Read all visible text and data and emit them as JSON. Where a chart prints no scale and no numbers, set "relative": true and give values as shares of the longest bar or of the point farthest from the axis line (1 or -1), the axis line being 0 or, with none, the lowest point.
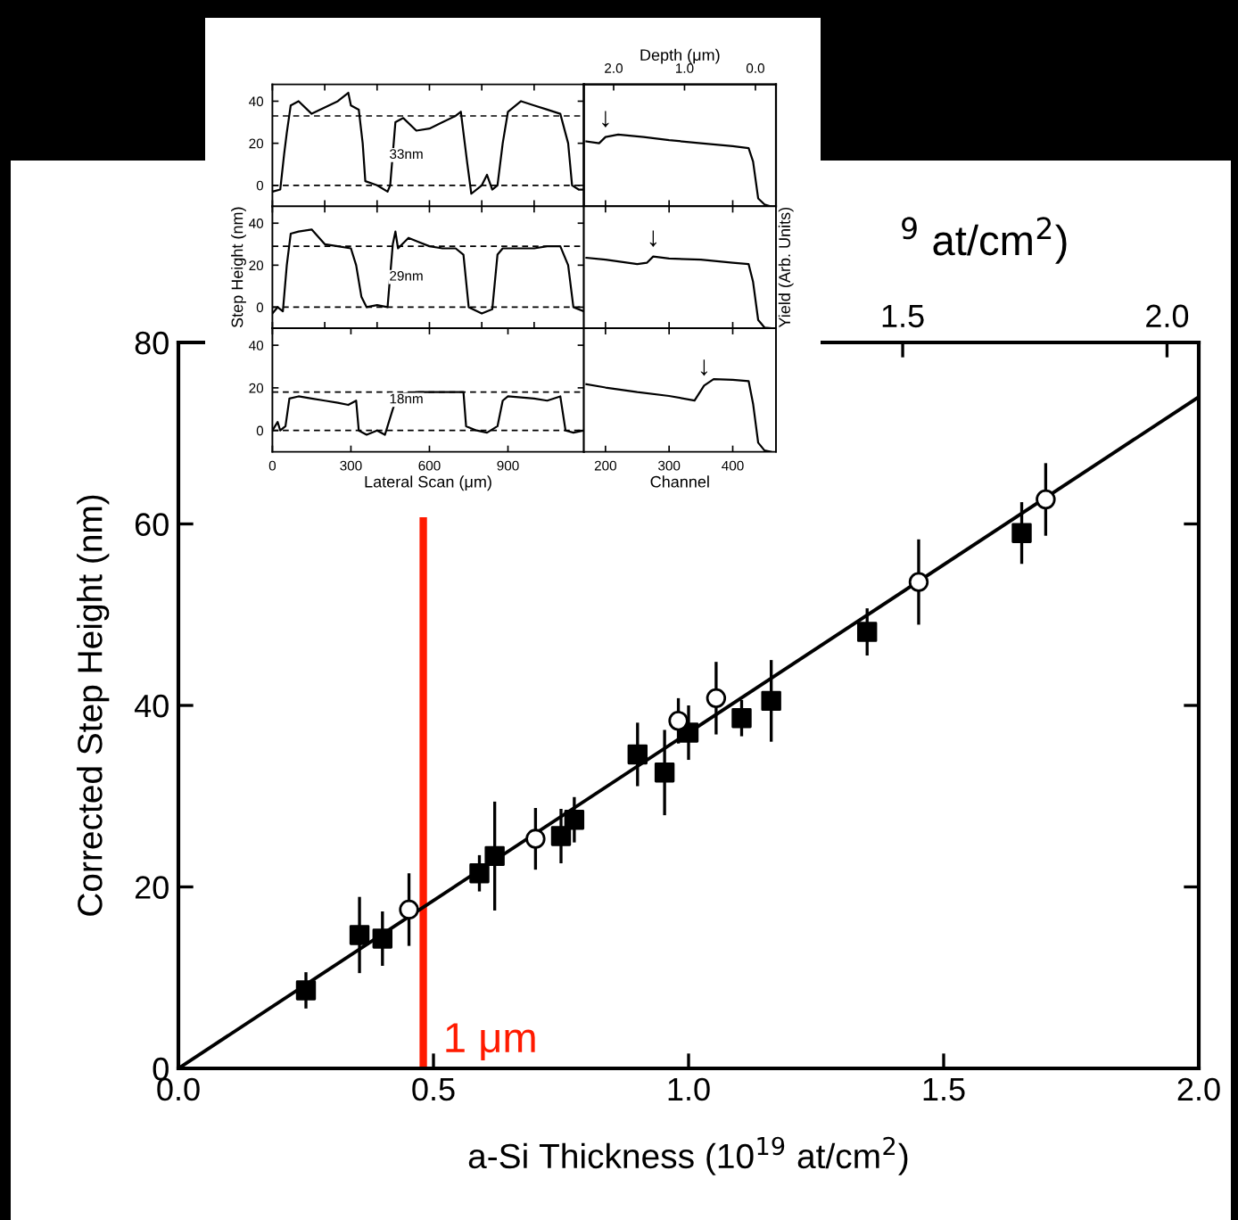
{
  "chart_data": [
    {
      "type": "scatter",
      "xlabel": "a-Si Thickness (10$^{19}$ at/cm$^{2}$)",
      "ylabel": "Corrected Step Height (nm)",
      "x2label": "$^{9}$ at/cm$^{2}$)",
      "xlim": [
        0,
        2.0
      ],
      "xticks": [
        {
          "value": 0,
          "label": "0.0"
        },
        0.5,
        {
          "value": 1,
          "label": "1.0"
        },
        1.5,
        {
          "value": 2,
          "label": "2.0"
        }
      ],
      "ylim": [
        0,
        80
      ],
      "yticks": [
        0,
        20,
        40,
        60,
        80
      ],
      "x2lim": [
        0.13,
        2.06
      ],
      "x2ticks": [
        1.5,
        {
          "value": 2,
          "label": "2.0"
        }
      ],
      "series": [
        {
          "type": "scatter",
          "marker": "square",
          "color": "#000000",
          "x": [
            0.25,
            0.355,
            0.4,
            0.59,
            0.62,
            0.75,
            0.776,
            0.9,
            0.953,
            1.0,
            1.104,
            1.162,
            1.35,
            1.653
          ],
          "values": [
            8.6,
            14.7,
            14.3,
            21.5,
            23.4,
            25.6,
            27.4,
            34.6,
            32.6,
            37.0,
            38.6,
            40.5,
            48.1,
            59.0
          ],
          "errors": [
            2,
            4.2,
            3,
            2,
            6,
            3,
            2.5,
            3.5,
            4.7,
            3,
            2,
            4.5,
            2.6,
            3.4
          ]
        },
        {
          "type": "scatter",
          "marker": "circle",
          "color": "#ffffff",
          "x": [
            0.452,
            0.7,
            0.98,
            1.054,
            1.451,
            1.7
          ],
          "values": [
            17.5,
            25.3,
            38.3,
            40.8,
            53.6,
            62.7
          ],
          "errors": [
            4,
            3.4,
            2.5,
            4,
            4.7,
            4
          ]
        },
        {
          "type": "line",
          "color": "#000000",
          "x": [
            0,
            2.0
          ],
          "values": [
            0,
            74
          ]
        }
      ],
      "ref_lines": [
        {
          "axis": "x",
          "value": 0.48,
          "label": "1 μm",
          "color": "#ff1a00"
        }
      ]
    },
    {
      "type": "line",
      "xlim": [
        0,
        1190
      ],
      "ylim": [
        -10,
        48
      ],
      "yticks": [
        0,
        20,
        40
      ],
      "tick_labels": "y",
      "series": [
        {
          "color": "#000000",
          "x": [
            0,
            30,
            45,
            55,
            70,
            100,
            150,
            200,
            250,
            290,
            300,
            330,
            345,
            355,
            400,
            440,
            450,
            470,
            500,
            550,
            600,
            650,
            700,
            720,
            730,
            745,
            760,
            800,
            820,
            840,
            860,
            880,
            900,
            950,
            1000,
            1050,
            1100,
            1130,
            1145,
            1170,
            1190
          ],
          "values": [
            -3,
            -2,
            15,
            25,
            38,
            40,
            34,
            37,
            40,
            44,
            38,
            36,
            20,
            2,
            0,
            -3,
            0,
            30,
            32,
            26,
            27,
            30,
            33,
            35,
            25,
            10,
            -4,
            0,
            5,
            -2,
            0,
            20,
            35,
            40,
            38,
            36,
            34,
            20,
            0,
            -2,
            -2
          ]
        }
      ],
      "ref_lines": [
        {
          "axis": "y",
          "value": 0,
          "line_style": "dashed"
        },
        {
          "axis": "y",
          "value": 33,
          "line_style": "dashed"
        }
      ],
      "annotations": [
        "33nm"
      ]
    },
    {
      "type": "line",
      "relative": true,
      "xlim": [
        166,
        468
      ],
      "tick_labels": false,
      "x2label": "Depth (μm)",
      "x2lim": [
        2.42,
        -0.29
      ],
      "x2ticks": [
        {
          "value": 2,
          "label": "2.0"
        },
        {
          "value": 1,
          "label": "1.0"
        },
        {
          "value": 0,
          "label": "0.0"
        }
      ],
      "series": [
        {
          "color": "#000000",
          "x": [
            170,
            190,
            200,
            220,
            260,
            300,
            350,
            400,
            425,
            432,
            440,
            450,
            460
          ],
          "values": [
            0.906,
            0.88,
            0.966,
            1.0,
            0.966,
            0.923,
            0.88,
            0.838,
            0.812,
            0.624,
            0.111,
            0.026,
            0
          ]
        }
      ],
      "annotations": [
        {
          "text": "↓",
          "x": 200,
          "y": 0.966
        }
      ]
    },
    {
      "type": "line",
      "ylabel": "Step Height (nm)",
      "xlim": [
        0,
        1190
      ],
      "ylim": [
        -10,
        48
      ],
      "yticks": [
        0,
        20,
        40
      ],
      "tick_labels": "y",
      "series": [
        {
          "color": "#000000",
          "x": [
            0,
            20,
            40,
            55,
            70,
            100,
            150,
            200,
            250,
            300,
            320,
            340,
            360,
            400,
            440,
            460,
            470,
            480,
            520,
            560,
            600,
            650,
            700,
            730,
            750,
            800,
            840,
            860,
            880,
            950,
            1000,
            1050,
            1100,
            1130,
            1150,
            1190
          ],
          "values": [
            -3,
            0,
            -2,
            20,
            35,
            36,
            37,
            30,
            29,
            28,
            20,
            5,
            0,
            1,
            0,
            30,
            36,
            28,
            33,
            31,
            29,
            28,
            28,
            25,
            0,
            -3,
            -1,
            25,
            28,
            28,
            28,
            29,
            29,
            20,
            0,
            -2
          ]
        }
      ],
      "ref_lines": [
        {
          "axis": "y",
          "value": 0,
          "line_style": "dashed"
        },
        {
          "axis": "y",
          "value": 29,
          "line_style": "dashed"
        }
      ],
      "annotations": [
        "29nm"
      ]
    },
    {
      "type": "line",
      "relative": true,
      "ylabel": "Yield (Arb. Units)",
      "xlim": [
        166,
        468
      ],
      "tick_labels": false,
      "series": [
        {
          "color": "#000000",
          "x": [
            170,
            200,
            250,
            265,
            275,
            300,
            350,
            400,
            425,
            432,
            440,
            450,
            460
          ],
          "values": [
            0.982,
            0.956,
            0.894,
            0.912,
            1.0,
            0.973,
            0.956,
            0.912,
            0.894,
            0.646,
            0.115,
            0.009,
            0
          ]
        }
      ],
      "annotations": [
        {
          "text": "↓",
          "x": 275,
          "y": 1.0
        }
      ]
    },
    {
      "type": "line",
      "xlabel": "Lateral Scan (μm)",
      "xlim": [
        0,
        1190
      ],
      "xticks": [
        0,
        300,
        600,
        900
      ],
      "ylim": [
        -10,
        48
      ],
      "yticks": [
        0,
        20,
        40
      ],
      "series": [
        {
          "color": "#000000",
          "x": [
            0,
            20,
            30,
            50,
            65,
            100,
            150,
            200,
            250,
            290,
            320,
            330,
            360,
            400,
            430,
            460,
            480,
            550,
            600,
            700,
            730,
            740,
            780,
            820,
            860,
            880,
            900,
            1000,
            1050,
            1100,
            1120,
            1150,
            1190
          ],
          "values": [
            0,
            4,
            0,
            2,
            15,
            16,
            15,
            14,
            13,
            12,
            14,
            0,
            -2,
            0,
            -2,
            10,
            17,
            18,
            18,
            18,
            18,
            2,
            0,
            -1,
            2,
            14,
            16,
            15,
            14,
            16,
            0,
            -1,
            0
          ]
        }
      ],
      "ref_lines": [
        {
          "axis": "y",
          "value": 0,
          "line_style": "dashed"
        },
        {
          "axis": "y",
          "value": 18,
          "line_style": "dashed"
        }
      ],
      "annotations": [
        "18nm"
      ]
    },
    {
      "type": "line",
      "relative": true,
      "xlabel": "Channel",
      "xlim": [
        166,
        468
      ],
      "xticks": [
        200,
        300,
        400
      ],
      "tick_labels": "x",
      "series": [
        {
          "color": "#000000",
          "x": [
            170,
            200,
            250,
            300,
            340,
            355,
            370,
            400,
            425,
            432,
            440,
            450,
            460
          ],
          "values": [
            0.929,
            0.884,
            0.821,
            0.768,
            0.705,
            0.911,
            1.0,
            0.991,
            0.973,
            0.661,
            0.125,
            0.018,
            0
          ]
        }
      ],
      "annotations": [
        {
          "text": "↓",
          "x": 355,
          "y": 0.911
        }
      ]
    }
  ]
}
